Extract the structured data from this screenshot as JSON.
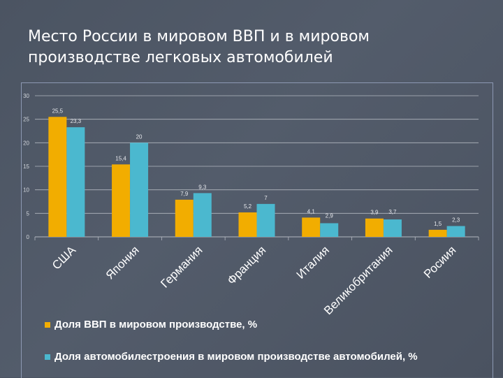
{
  "slide": {
    "title": "Место России в мировом ВВП и в мировом производстве легковых автомобилей"
  },
  "colors": {
    "series1": "#f2ad00",
    "series2": "#4bb8cf",
    "grid": "#b3b8c0"
  },
  "chart_data": {
    "type": "bar",
    "categories": [
      "США",
      "Япония",
      "Германия",
      "Франция",
      "Италия",
      "Великобритания",
      "Росиия"
    ],
    "series": [
      {
        "name": "Доля ВВП в мировом производстве, %",
        "values": [
          25.5,
          15.4,
          7.9,
          5.2,
          4.1,
          3.9,
          1.5
        ],
        "labels": [
          "25,5",
          "15,4",
          "7,9",
          "5,2",
          "4,1",
          "3,9",
          "1,5"
        ]
      },
      {
        "name": "Доля автомобилестроения в мировом производстве автомобилей, %",
        "values": [
          23.3,
          20,
          9.3,
          7,
          2.9,
          3.7,
          2.3
        ],
        "labels": [
          "23,3",
          "20",
          "9,3",
          "7",
          "2,9",
          "3,7",
          "2,3"
        ]
      }
    ],
    "yticks": [
      "0",
      "5",
      "10",
      "15",
      "20",
      "25",
      "30"
    ],
    "ylim": [
      0,
      30
    ],
    "grid": true,
    "legend_position": "bottom"
  }
}
